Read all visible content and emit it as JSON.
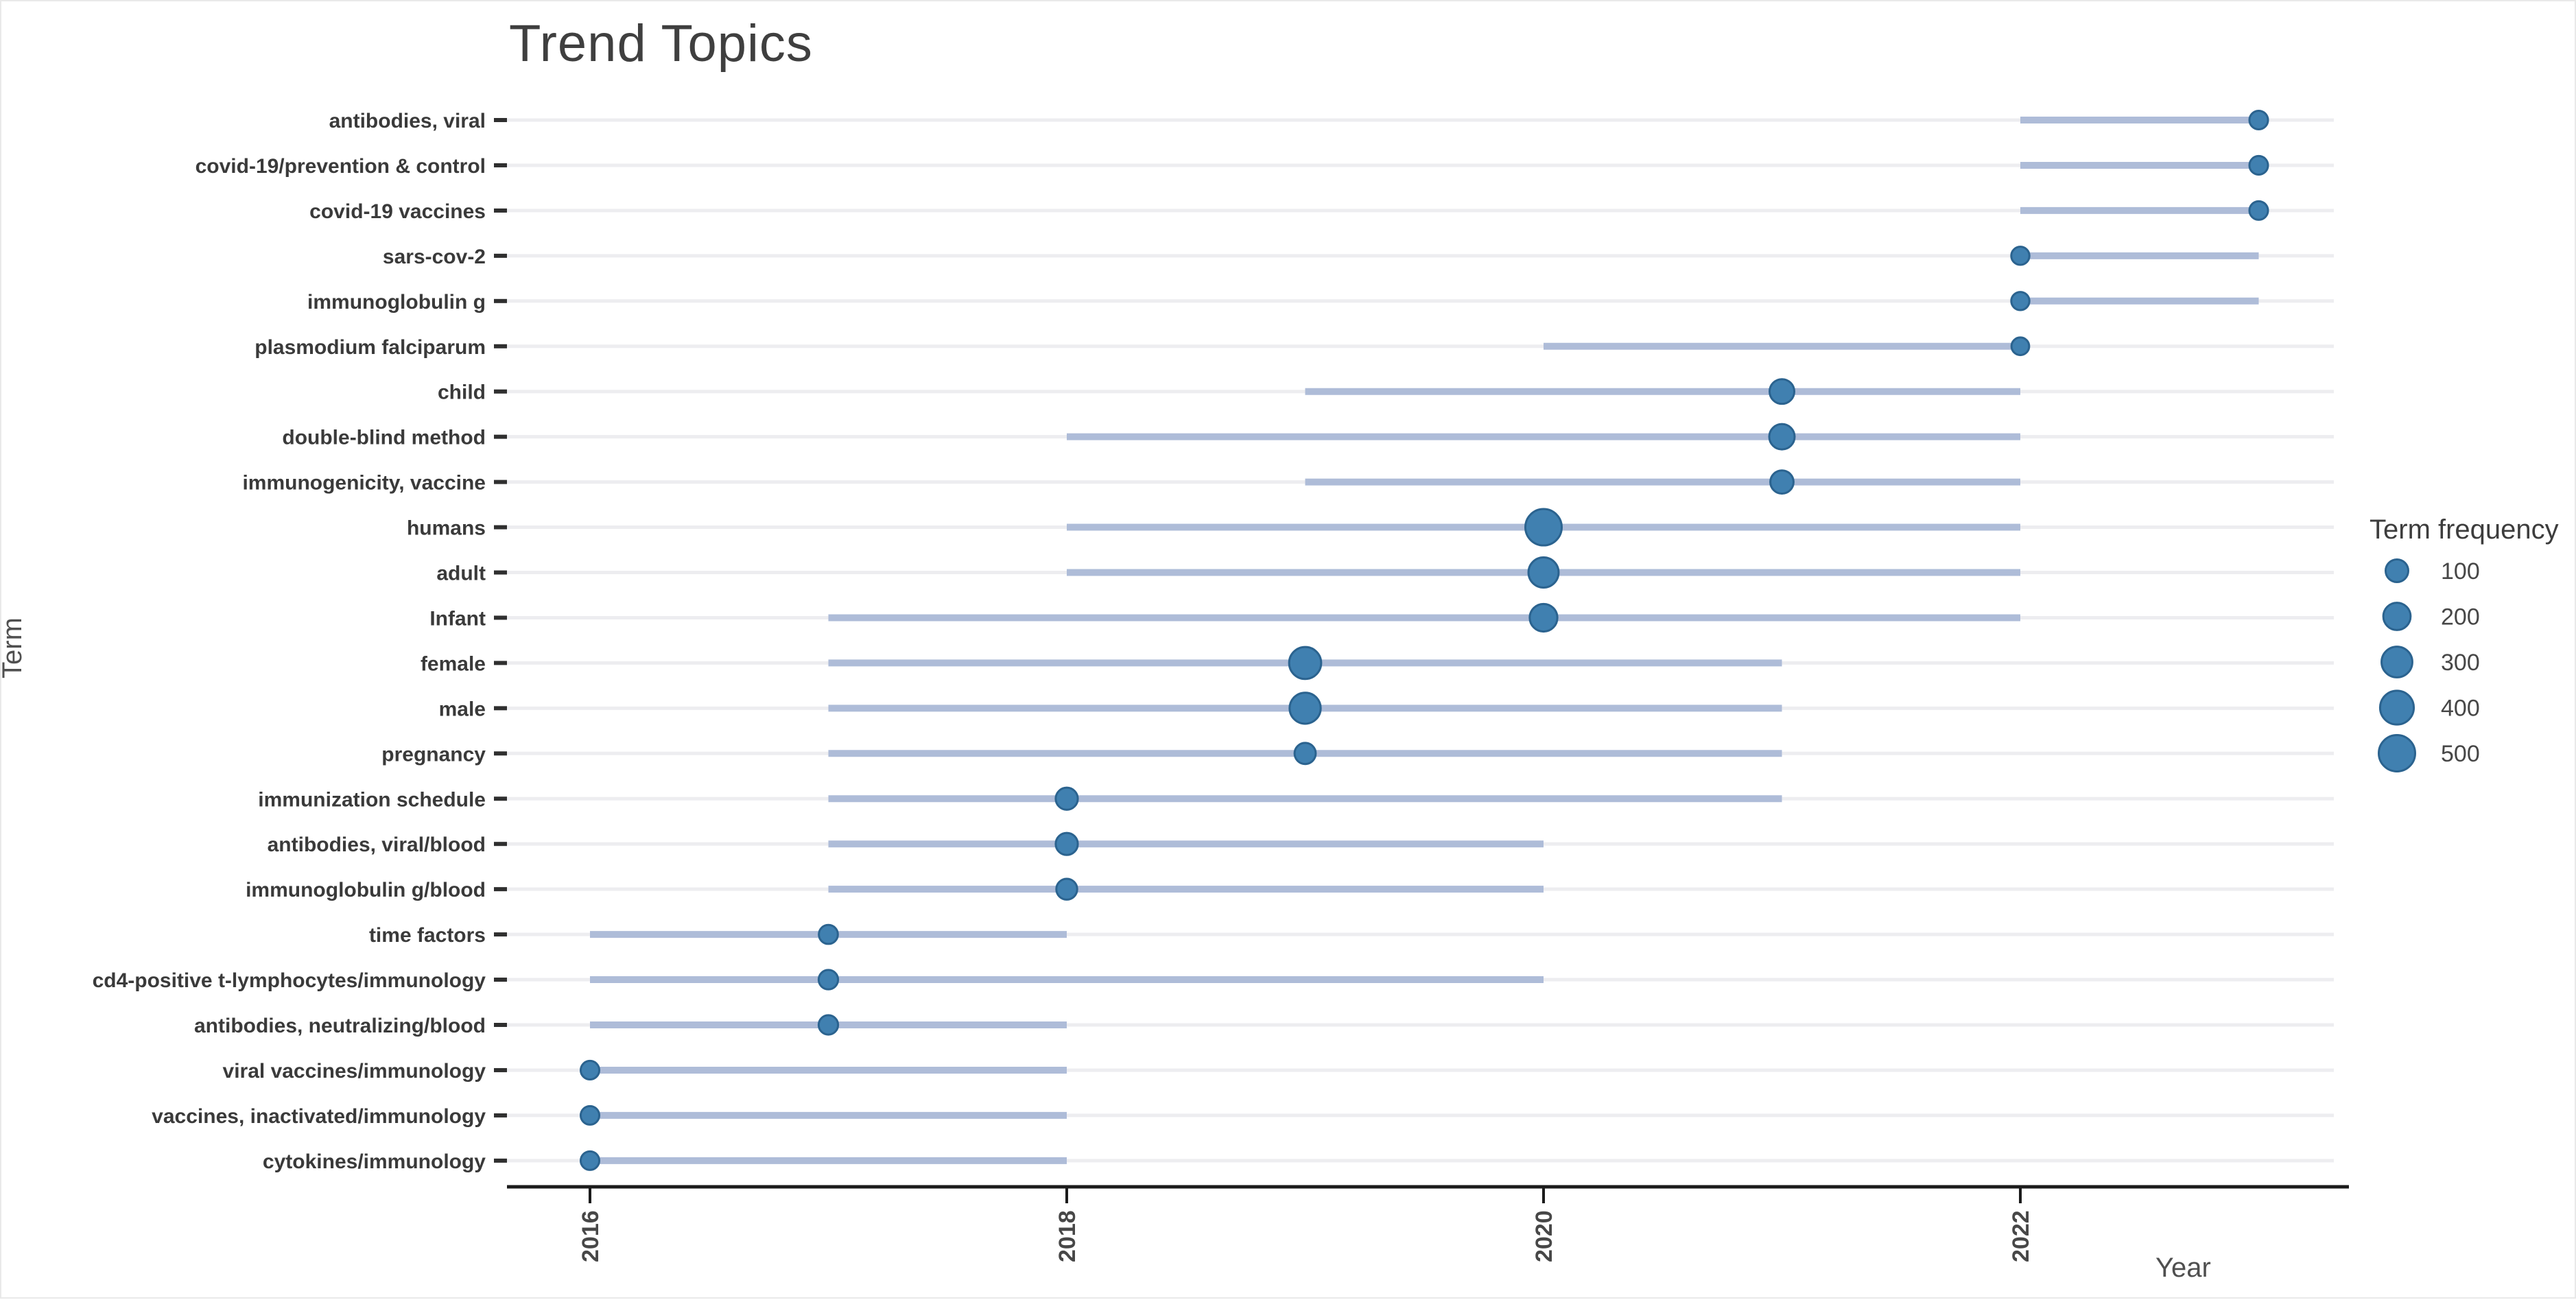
{
  "title": "Trend Topics",
  "x_axis": {
    "label": "Year",
    "ticks": [
      2016,
      2018,
      2020,
      2022
    ]
  },
  "y_axis": {
    "label": "Term"
  },
  "legend": {
    "title": "Term frequency",
    "sizes": [
      100,
      200,
      300,
      400,
      500
    ]
  },
  "colors": {
    "dot_fill": "#4080b0",
    "dot_stroke": "#2b638f",
    "range_line": "#aebcd8",
    "gridline": "#ededf0",
    "axis_line": "#1b1b1b",
    "tick_mark": "#2f2f2f",
    "term_label": "#3a3a3a",
    "tick_label": "#474747",
    "legend_label": "#474747"
  },
  "chart_data": {
    "type": "scatter",
    "description": "Trend topics plot: per term a horizontal line spans first-to-last year (Q1-Q3) and a dot sized by term frequency marks the peak (median) year.",
    "xlabel": "Year",
    "ylabel": "Term",
    "x_range": [
      2015.65,
      2023.3
    ],
    "grid": "horizontal-only",
    "legend_position": "right",
    "series": [
      {
        "term": "antibodies, viral",
        "year_start": 2022,
        "year_peak": 2023,
        "year_end": 2023,
        "frequency": 40
      },
      {
        "term": "covid-19/prevention & control",
        "year_start": 2022,
        "year_peak": 2023,
        "year_end": 2023,
        "frequency": 40
      },
      {
        "term": "covid-19 vaccines",
        "year_start": 2022,
        "year_peak": 2023,
        "year_end": 2023,
        "frequency": 40
      },
      {
        "term": "sars-cov-2",
        "year_start": 2022,
        "year_peak": 2022,
        "year_end": 2023,
        "frequency": 35
      },
      {
        "term": "immunoglobulin g",
        "year_start": 2022,
        "year_peak": 2022,
        "year_end": 2023,
        "frequency": 35
      },
      {
        "term": "plasmodium falciparum",
        "year_start": 2020,
        "year_peak": 2022,
        "year_end": 2022,
        "frequency": 30
      },
      {
        "term": "child",
        "year_start": 2019,
        "year_peak": 2021,
        "year_end": 2022,
        "frequency": 140
      },
      {
        "term": "double-blind method",
        "year_start": 2018,
        "year_peak": 2021,
        "year_end": 2022,
        "frequency": 155
      },
      {
        "term": "immunogenicity, vaccine",
        "year_start": 2019,
        "year_peak": 2021,
        "year_end": 2022,
        "frequency": 110
      },
      {
        "term": "humans",
        "year_start": 2018,
        "year_peak": 2020,
        "year_end": 2022,
        "frequency": 500
      },
      {
        "term": "adult",
        "year_start": 2018,
        "year_peak": 2020,
        "year_end": 2022,
        "frequency": 280
      },
      {
        "term": "Infant",
        "year_start": 2017,
        "year_peak": 2020,
        "year_end": 2022,
        "frequency": 210
      },
      {
        "term": "female",
        "year_start": 2017,
        "year_peak": 2019,
        "year_end": 2021,
        "frequency": 340
      },
      {
        "term": "male",
        "year_start": 2017,
        "year_peak": 2019,
        "year_end": 2021,
        "frequency": 310
      },
      {
        "term": "pregnancy",
        "year_start": 2017,
        "year_peak": 2019,
        "year_end": 2021,
        "frequency": 75
      },
      {
        "term": "immunization schedule",
        "year_start": 2017,
        "year_peak": 2018,
        "year_end": 2021,
        "frequency": 90
      },
      {
        "term": "antibodies, viral/blood",
        "year_start": 2017,
        "year_peak": 2018,
        "year_end": 2020,
        "frequency": 90
      },
      {
        "term": "immunoglobulin g/blood",
        "year_start": 2017,
        "year_peak": 2018,
        "year_end": 2020,
        "frequency": 70
      },
      {
        "term": "time factors",
        "year_start": 2016,
        "year_peak": 2017,
        "year_end": 2018,
        "frequency": 45
      },
      {
        "term": "cd4-positive t-lymphocytes/immunology",
        "year_start": 2016,
        "year_peak": 2017,
        "year_end": 2020,
        "frequency": 50
      },
      {
        "term": "antibodies, neutralizing/blood",
        "year_start": 2016,
        "year_peak": 2017,
        "year_end": 2018,
        "frequency": 50
      },
      {
        "term": "viral vaccines/immunology",
        "year_start": 2016,
        "year_peak": 2016,
        "year_end": 2018,
        "frequency": 40
      },
      {
        "term": "vaccines, inactivated/immunology",
        "year_start": 2016,
        "year_peak": 2016,
        "year_end": 2018,
        "frequency": 40
      },
      {
        "term": "cytokines/immunology",
        "year_start": 2016,
        "year_peak": 2016,
        "year_end": 2018,
        "frequency": 40
      }
    ]
  }
}
